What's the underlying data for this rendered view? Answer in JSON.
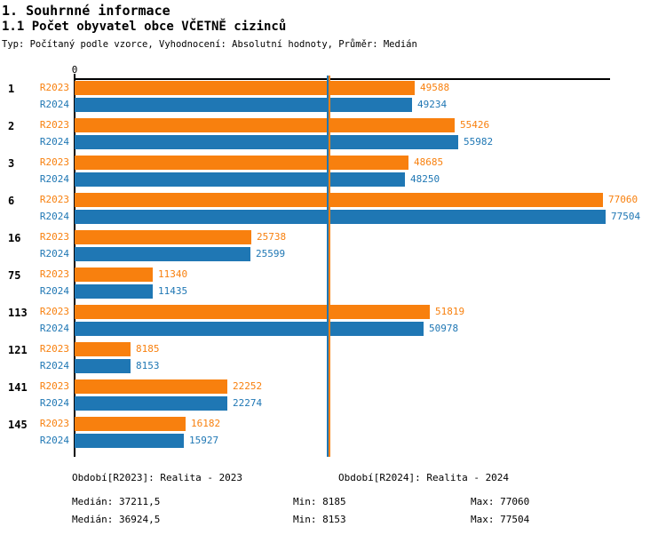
{
  "header": {
    "title": "1. Souhrnné informace",
    "subtitle": "1.1 Počet obyvatel obce VČETNĚ cizinců",
    "meta": "Typ: Počítaný podle vzorce, Vyhodnocení: Absolutní hodnoty, Průměr: Medián"
  },
  "chart_data": {
    "type": "bar",
    "orientation": "horizontal",
    "title": "1.1 Počet obyvatel obce VČETNĚ cizinců",
    "zero_label": "0",
    "categories": [
      "1",
      "2",
      "3",
      "6",
      "16",
      "75",
      "113",
      "121",
      "141",
      "145"
    ],
    "series": [
      {
        "name": "R2023",
        "period_label": "Realita - 2023",
        "color": "#f8800e",
        "values": [
          49588,
          55426,
          48685,
          77060,
          25738,
          11340,
          51819,
          8185,
          22252,
          16182
        ],
        "median": 37211.5,
        "min": 8185,
        "max": 77060
      },
      {
        "name": "R2024",
        "period_label": "Realita - 2024",
        "color": "#1f77b4",
        "values": [
          49234,
          55982,
          48250,
          77504,
          25599,
          11435,
          50978,
          8153,
          22274,
          15927
        ],
        "median": 36924.5,
        "min": 8153,
        "max": 77504
      }
    ],
    "xlim": [
      0,
      78000
    ],
    "grid": false,
    "value_labels": true,
    "median_lines": true,
    "legend_position": "bottom"
  },
  "footer": {
    "legends": [
      {
        "period": "Období[R2023]: Realita - 2023",
        "median": "Medián: 37211,5",
        "min": "Min: 8185",
        "max": "Max: 77060"
      },
      {
        "period": "Období[R2024]: Realita - 2024",
        "median": "Medián: 36924,5",
        "min": "Min: 8153",
        "max": "Max: 77504"
      }
    ]
  },
  "colors": {
    "series_2023": "#f8800e",
    "series_2024": "#1f77b4",
    "axis": "#000000",
    "background": "#ffffff"
  }
}
